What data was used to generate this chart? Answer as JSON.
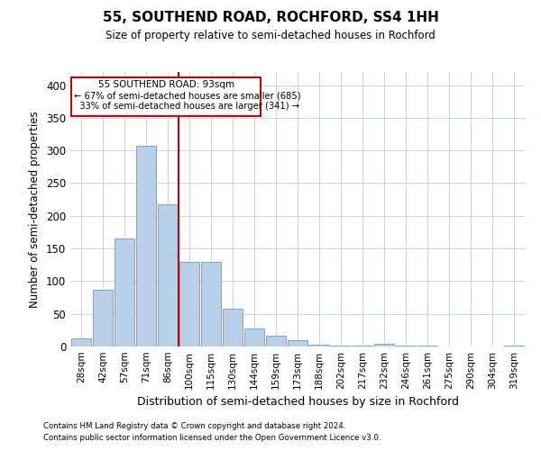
{
  "title": "55, SOUTHEND ROAD, ROCHFORD, SS4 1HH",
  "subtitle": "Size of property relative to semi-detached houses in Rochford",
  "xlabel": "Distribution of semi-detached houses by size in Rochford",
  "ylabel": "Number of semi-detached properties",
  "footnote1": "Contains HM Land Registry data © Crown copyright and database right 2024.",
  "footnote2": "Contains public sector information licensed under the Open Government Licence v3.0.",
  "categories": [
    "28sqm",
    "42sqm",
    "57sqm",
    "71sqm",
    "86sqm",
    "100sqm",
    "115sqm",
    "130sqm",
    "144sqm",
    "159sqm",
    "173sqm",
    "188sqm",
    "202sqm",
    "217sqm",
    "232sqm",
    "246sqm",
    "261sqm",
    "275sqm",
    "290sqm",
    "304sqm",
    "319sqm"
  ],
  "values": [
    13,
    87,
    165,
    307,
    217,
    130,
    130,
    58,
    27,
    17,
    10,
    3,
    2,
    2,
    4,
    1,
    2,
    0,
    0,
    0,
    2
  ],
  "bar_color": "#b8d0ea",
  "bar_edge_color": "#6699cc",
  "pct_smaller": 67,
  "count_smaller": 685,
  "pct_larger": 33,
  "count_larger": 341,
  "vline_color": "#cc0000",
  "vline_position": 4.5,
  "annotation_box_color": "#cc0000",
  "ylim": [
    0,
    420
  ],
  "yticks": [
    0,
    50,
    100,
    150,
    200,
    250,
    300,
    350,
    400
  ],
  "background_color": "#ffffff",
  "grid_color": "#c8d4e8"
}
